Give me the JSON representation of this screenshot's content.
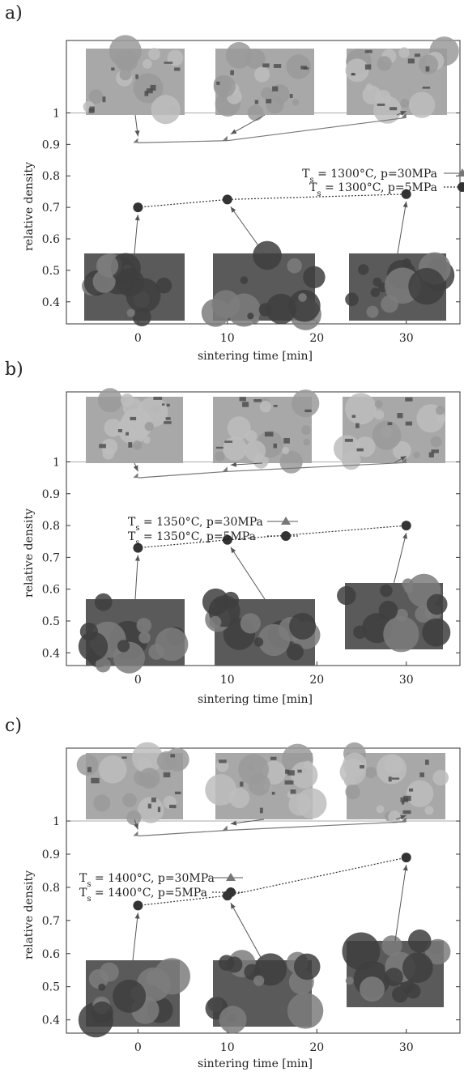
{
  "chart_data": [
    {
      "panel": "a)",
      "type": "line",
      "xlabel": "sintering time [min]",
      "ylabel": "relative density",
      "x_ticks": [
        0,
        10,
        20,
        30
      ],
      "y_ticks": [
        0.4,
        0.5,
        0.6,
        0.7,
        0.8,
        0.9,
        1
      ],
      "xlim": [
        -8,
        36
      ],
      "ylim": [
        0.33,
        1.23
      ],
      "reference_line_y": 1,
      "legend_position": "right",
      "series": [
        {
          "name": "T_s = 1300°C, p=30MPa",
          "label_main": "T",
          "label_sub": "s",
          "label_rest": " = 1300°C, p=30MPa",
          "marker": "triangle",
          "line": "solid",
          "x": [
            0,
            10,
            30
          ],
          "y": [
            0.905,
            0.912,
            0.985
          ]
        },
        {
          "name": "T_s = 1300°C, p=5MPa",
          "label_main": "T",
          "label_sub": "s",
          "label_rest": " = 1300°C, p=5MPa",
          "marker": "circle",
          "line": "dotted",
          "x": [
            0,
            10,
            30
          ],
          "y": [
            0.7,
            0.725,
            0.742
          ]
        }
      ]
    },
    {
      "panel": "b)",
      "type": "line",
      "xlabel": "sintering time [min]",
      "ylabel": "relative density",
      "x_ticks": [
        0,
        10,
        20,
        30
      ],
      "y_ticks": [
        0.4,
        0.5,
        0.6,
        0.7,
        0.8,
        0.9,
        1
      ],
      "xlim": [
        -8,
        36
      ],
      "ylim": [
        0.36,
        1.22
      ],
      "reference_line_y": 1,
      "legend_position": "left",
      "series": [
        {
          "name": "T_s = 1350°C, p=30MPa",
          "label_main": "T",
          "label_sub": "s",
          "label_rest": " = 1350°C, p=30MPa",
          "marker": "triangle",
          "line": "solid",
          "x": [
            0,
            10,
            30
          ],
          "y": [
            0.95,
            0.97,
            0.998
          ]
        },
        {
          "name": "T_s = 1350°C, p=5MPa",
          "label_main": "T",
          "label_sub": "s",
          "label_rest": " = 1350°C, p=5MPa",
          "marker": "circle",
          "line": "dotted",
          "x": [
            0,
            10,
            30
          ],
          "y": [
            0.73,
            0.755,
            0.8
          ]
        }
      ]
    },
    {
      "panel": "c)",
      "type": "line",
      "xlabel": "sintering time [min]",
      "ylabel": "relative density",
      "x_ticks": [
        0,
        10,
        20,
        30
      ],
      "y_ticks": [
        0.4,
        0.5,
        0.6,
        0.7,
        0.8,
        0.9,
        1
      ],
      "xlim": [
        -8,
        36
      ],
      "ylim": [
        0.36,
        1.22
      ],
      "reference_line_y": 1,
      "legend_position": "left",
      "series": [
        {
          "name": "T_s = 1400°C, p=30MPa",
          "label_main": "T",
          "label_sub": "s",
          "label_rest": " = 1400°C, p=30MPa",
          "marker": "triangle",
          "line": "solid",
          "x": [
            0,
            10,
            30
          ],
          "y": [
            0.955,
            0.972,
            0.998
          ]
        },
        {
          "name": "T_s = 1400°C, p=5MPa",
          "label_main": "T",
          "label_sub": "s",
          "label_rest": " = 1400°C, p=5MPa",
          "marker": "circle",
          "line": "dotted",
          "x": [
            0,
            10,
            30
          ],
          "y": [
            0.745,
            0.775,
            0.89
          ]
        }
      ]
    }
  ],
  "colors": {
    "triangle_series": "#777777",
    "circle_series": "#333333",
    "axis": "#333333",
    "reference_line": "#aaaaaa",
    "micrograph_polished": "#a8a8a8",
    "micrograph_powder": "#5a5a5a"
  }
}
